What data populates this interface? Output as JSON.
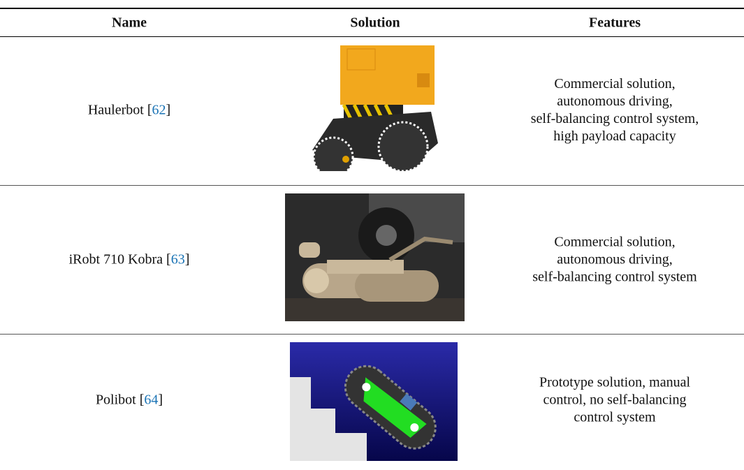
{
  "table": {
    "header": [
      "Name",
      "Solution",
      "Features"
    ],
    "rows": [
      {
        "name": [
          "Haulerbot [",
          "62",
          "]"
        ],
        "features": [
          "Commercial solution,",
          "autonomous driving,",
          "self-balancing control system,",
          "high payload capacity"
        ]
      },
      {
        "name": [
          "iRobt 710 Kobra [",
          "63",
          "]"
        ],
        "features": [
          "Commercial solution,",
          "autonomous driving,",
          "self-balancing control system"
        ]
      },
      {
        "name": [
          "Polibot [",
          "64",
          "]"
        ],
        "features": [
          "Prototype solution, manual",
          "control, no self-balancing",
          "control system"
        ]
      }
    ]
  }
}
